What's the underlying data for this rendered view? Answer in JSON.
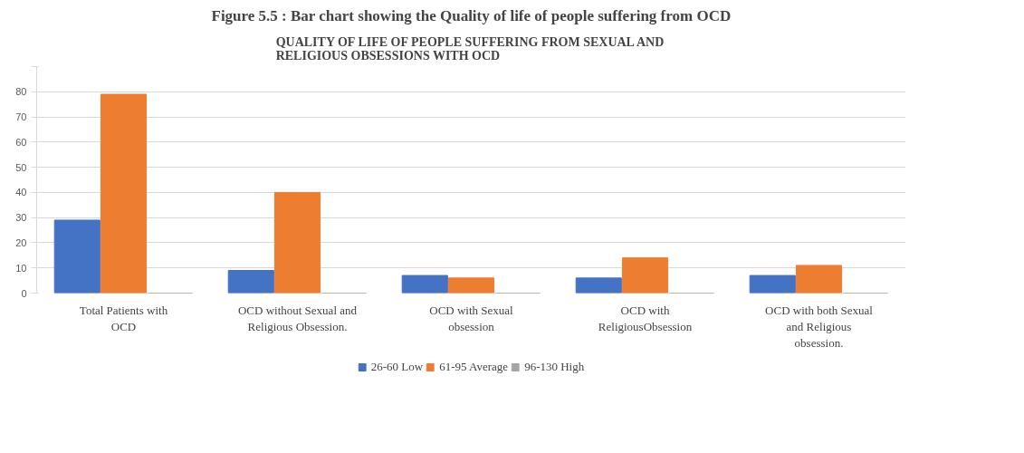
{
  "chart_data": {
    "type": "bar",
    "title": "QUALITY OF LIFE OF PEOPLE SUFFERING FROM SEXUAL AND RELIGIOUS OBSESSIONS WITH OCD",
    "annotations": [
      "Figure 5.5 : Bar chart showing the Quality of life of people suffering from OCD"
    ],
    "categories": [
      "Total Patients with OCD",
      "OCD without Sexual and Religious Obsession.",
      "OCD with Sexual obsession",
      "OCD with ReligiousObsession",
      "OCD with both Sexual and Religious obsession."
    ],
    "series": [
      {
        "name": "26-60 Low",
        "color": "#4472c4",
        "values": [
          29,
          9,
          7,
          6,
          7
        ]
      },
      {
        "name": "61-95 Average",
        "color": "#ed7d31",
        "values": [
          79,
          40,
          6,
          14,
          11
        ]
      },
      {
        "name": "96-130 High",
        "color": "#a5a5a5",
        "values": [
          0,
          0,
          0,
          0,
          0
        ]
      }
    ],
    "ylim": [
      0,
      90
    ],
    "yticks": [
      0,
      10,
      20,
      30,
      40,
      50,
      60,
      70,
      80,
      {
        "value": 90,
        "label": null
      }
    ],
    "grid": "y",
    "legend": "bottom"
  }
}
